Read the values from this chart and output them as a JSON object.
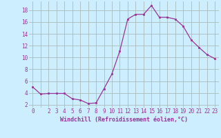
{
  "x": [
    0,
    1,
    2,
    3,
    4,
    5,
    6,
    7,
    8,
    9,
    10,
    11,
    12,
    13,
    14,
    15,
    16,
    17,
    18,
    19,
    20,
    21,
    22,
    23
  ],
  "y": [
    5.0,
    3.8,
    3.9,
    3.9,
    3.9,
    3.0,
    2.8,
    2.2,
    2.3,
    4.7,
    7.2,
    11.1,
    16.5,
    17.3,
    17.3,
    18.8,
    16.8,
    16.8,
    16.5,
    15.3,
    13.0,
    11.7,
    10.5,
    9.8
  ],
  "line_color": "#993399",
  "marker": "s",
  "markersize": 2,
  "linewidth": 0.9,
  "bg_color": "#cceeff",
  "grid_color": "#aabbbb",
  "xlabel": "Windchill (Refroidissement éolien,°C)",
  "xlabel_fontsize": 6.0,
  "ylabel_ticks": [
    2,
    4,
    6,
    8,
    10,
    12,
    14,
    16,
    18
  ],
  "xtick_labels": [
    "0",
    "",
    "2",
    "3",
    "4",
    "5",
    "6",
    "7",
    "8",
    "9",
    "10",
    "11",
    "12",
    "13",
    "14",
    "15",
    "16",
    "17",
    "18",
    "19",
    "20",
    "21",
    "22",
    "23"
  ],
  "xlim": [
    -0.5,
    23.5
  ],
  "ylim": [
    1.5,
    19.5
  ],
  "tick_fontsize": 5.5,
  "tick_color": "#993399",
  "axis_label_color": "#993399"
}
